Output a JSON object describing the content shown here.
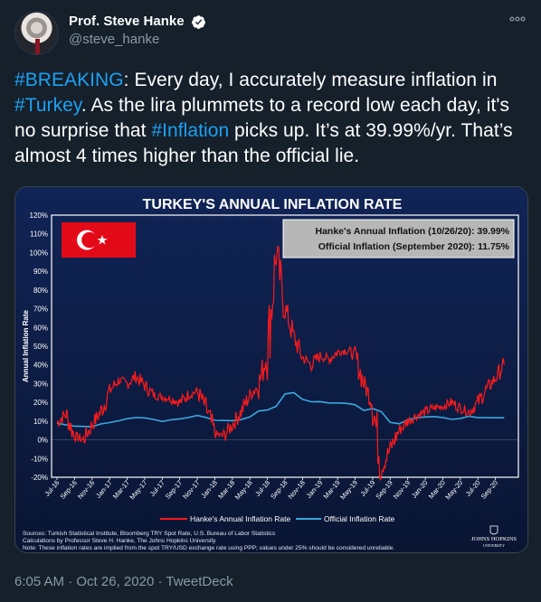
{
  "user": {
    "display_name": "Prof. Steve Hanke",
    "handle": "@steve_hanke"
  },
  "tweet": {
    "text_parts": [
      {
        "text": "#BREAKING",
        "hashtag": true
      },
      {
        "text": ": Every day, I accurately measure inflation in ",
        "hashtag": false
      },
      {
        "text": "#Turkey",
        "hashtag": true
      },
      {
        "text": ". As the lira plummets to a record low each day, it's no surprise that ",
        "hashtag": false
      },
      {
        "text": "#Inflation",
        "hashtag": true
      },
      {
        "text": " picks up. It’s at 39.99%/yr. That’s almost 4 times higher than the official lie.",
        "hashtag": false
      }
    ],
    "time": "6:05 AM",
    "date": "Oct 26, 2020",
    "separator": "·",
    "source": "TweetDeck"
  },
  "icons": {
    "verified": "verified-badge-icon",
    "more": "more-options-icon",
    "flag": "turkish-flag-icon",
    "logo": "johns-hopkins-logo"
  },
  "colors": {
    "background": "#15202b",
    "hashtag": "#1da1f2",
    "muted": "#8899a6",
    "chart_background": "#0e1a3d",
    "hanke_line": "#ff1a1a",
    "official_line": "#3aa8e0"
  },
  "chart_data": {
    "type": "line",
    "title": "TURKEY'S ANNUAL INFLATION RATE",
    "ylabel": "Annual Inflation Rate",
    "ylim": [
      -20,
      120
    ],
    "yticks": [
      "120%",
      "110%",
      "100%",
      "90%",
      "80%",
      "70%",
      "60%",
      "50%",
      "40%",
      "30%",
      "20%",
      "10%",
      "0%",
      "-10%",
      "-20%"
    ],
    "xticks": [
      "Jul-16",
      "Sep-16",
      "Nov-16",
      "Jan-17",
      "Mar-17",
      "May-17",
      "Jul-17",
      "Sep-17",
      "Nov-17",
      "Jan-18",
      "Mar-18",
      "May-18",
      "Jul-18",
      "Sep-18",
      "Nov-18",
      "Jan-19",
      "Mar-19",
      "May-19",
      "Jul-19",
      "Sep-19",
      "Nov-19",
      "Jan-20",
      "Mar-20",
      "May-20",
      "Jul-20",
      "Sep-20"
    ],
    "grid": false,
    "legend_position": "bottom",
    "annotation_box": {
      "line1": "Hanke's Annual Inflation (10/26/20): 39.99%",
      "line2": "Official Inflation (September 2020): 11.75%"
    },
    "series": [
      {
        "name": "Hanke's Annual Inflation Rate",
        "color": "#ff1a1a",
        "x": [
          "2016-07",
          "2016-08",
          "2016-09",
          "2016-10",
          "2016-11",
          "2016-12",
          "2017-01",
          "2017-02",
          "2017-03",
          "2017-04",
          "2017-05",
          "2017-06",
          "2017-07",
          "2017-08",
          "2017-09",
          "2017-10",
          "2017-11",
          "2017-12",
          "2018-01",
          "2018-02",
          "2018-03",
          "2018-04",
          "2018-05",
          "2018-06",
          "2018-07",
          "2018-08",
          "2018-09",
          "2018-10",
          "2018-11",
          "2018-12",
          "2019-01",
          "2019-02",
          "2019-03",
          "2019-04",
          "2019-05",
          "2019-06",
          "2019-07",
          "2019-08",
          "2019-09",
          "2019-10",
          "2019-11",
          "2019-12",
          "2020-01",
          "2020-02",
          "2020-03",
          "2020-04",
          "2020-05",
          "2020-06",
          "2020-07",
          "2020-08",
          "2020-09",
          "2020-10"
        ],
        "values": [
          9,
          14,
          2,
          0,
          8,
          15,
          26,
          32,
          30,
          34,
          29,
          24,
          23,
          22,
          20,
          24,
          26,
          17,
          3,
          2,
          8,
          15,
          24,
          29,
          47,
          100,
          70,
          55,
          44,
          40,
          45,
          43,
          47,
          48,
          45,
          30,
          20,
          -15,
          -5,
          5,
          10,
          13,
          15,
          17,
          18,
          20,
          17,
          15,
          20,
          27,
          33,
          40
        ]
      },
      {
        "name": "Official Inflation Rate",
        "color": "#3aa8e0",
        "x": [
          "2016-07",
          "2016-08",
          "2016-09",
          "2016-10",
          "2016-11",
          "2016-12",
          "2017-01",
          "2017-02",
          "2017-03",
          "2017-04",
          "2017-05",
          "2017-06",
          "2017-07",
          "2017-08",
          "2017-09",
          "2017-10",
          "2017-11",
          "2017-12",
          "2018-01",
          "2018-02",
          "2018-03",
          "2018-04",
          "2018-05",
          "2018-06",
          "2018-07",
          "2018-08",
          "2018-09",
          "2018-10",
          "2018-11",
          "2018-12",
          "2019-01",
          "2019-02",
          "2019-03",
          "2019-04",
          "2019-05",
          "2019-06",
          "2019-07",
          "2019-08",
          "2019-09",
          "2019-10",
          "2019-11",
          "2019-12",
          "2020-01",
          "2020-02",
          "2020-03",
          "2020-04",
          "2020-05",
          "2020-06",
          "2020-07",
          "2020-08",
          "2020-09",
          "2020-10"
        ],
        "values": [
          8.8,
          8.0,
          7.3,
          7.2,
          7.0,
          8.5,
          9.2,
          10.1,
          11.3,
          11.9,
          11.7,
          10.9,
          9.8,
          10.7,
          11.2,
          11.9,
          13.0,
          11.9,
          10.4,
          10.3,
          10.2,
          10.8,
          12.2,
          15.4,
          15.9,
          17.9,
          24.5,
          25.2,
          21.6,
          20.3,
          20.4,
          19.7,
          19.7,
          19.5,
          18.7,
          15.7,
          16.7,
          15.0,
          9.3,
          8.6,
          10.6,
          11.8,
          12.2,
          12.4,
          11.9,
          10.9,
          11.4,
          12.6,
          11.8,
          11.8,
          11.75,
          11.75
        ]
      }
    ],
    "sources_lines": [
      "Sources: Turkish Statistical Institute, Bloomberg TRY Spot Rate, U.S. Bureau of Labor Statistics",
      "Calculations by Professor Steve H. Hanke, The Johns Hopkins University",
      "Note: These inflation rates are implied from the spot TRY/USD exchange rate using PPP; values under 25% should be considered unreliable."
    ],
    "logo_text": "JOHNS HOPKINS",
    "logo_subtext": "UNIVERSITY"
  }
}
